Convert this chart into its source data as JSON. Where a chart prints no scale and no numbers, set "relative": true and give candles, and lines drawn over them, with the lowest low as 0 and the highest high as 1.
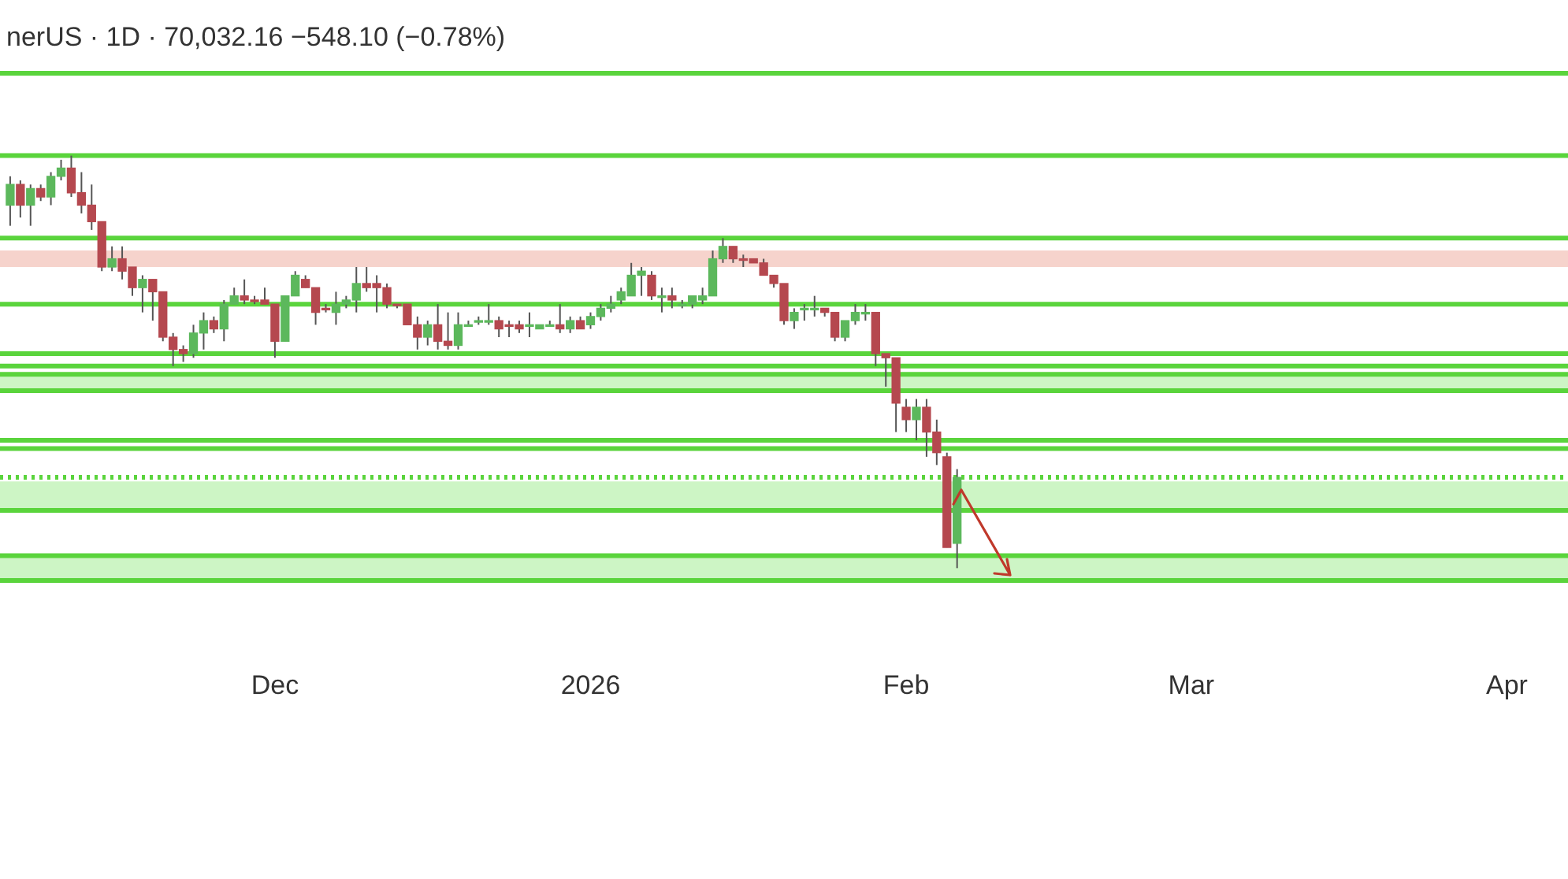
{
  "chart_data": {
    "type": "candlestick",
    "title": "nerUS · 1D · 70,032.16 −548.10 (−0.78%)",
    "relative": true,
    "legend": false,
    "grid": false,
    "tick_labels": "x",
    "xlim": [
      "2025-11-04",
      "2026-04-07"
    ],
    "xticks": [
      {
        "value": "2025-12-01",
        "label": "Dec"
      },
      {
        "value": "2026-01-01",
        "label": "2026"
      },
      {
        "value": "2026-02-01",
        "label": "Feb"
      },
      {
        "value": "2026-03-01",
        "label": "Mar"
      },
      {
        "value": "2026-04-01",
        "label": "Apr"
      }
    ],
    "x": [
      "2025-11-05",
      "2025-11-06",
      "2025-11-07",
      "2025-11-08",
      "2025-11-09",
      "2025-11-10",
      "2025-11-11",
      "2025-11-12",
      "2025-11-13",
      "2025-11-14",
      "2025-11-15",
      "2025-11-16",
      "2025-11-17",
      "2025-11-18",
      "2025-11-19",
      "2025-11-20",
      "2025-11-21",
      "2025-11-22",
      "2025-11-23",
      "2025-11-24",
      "2025-11-25",
      "2025-11-26",
      "2025-11-27",
      "2025-11-28",
      "2025-11-29",
      "2025-11-30",
      "2025-12-01",
      "2025-12-02",
      "2025-12-03",
      "2025-12-04",
      "2025-12-05",
      "2025-12-06",
      "2025-12-07",
      "2025-12-08",
      "2025-12-09",
      "2025-12-10",
      "2025-12-11",
      "2025-12-12",
      "2025-12-13",
      "2025-12-14",
      "2025-12-15",
      "2025-12-16",
      "2025-12-17",
      "2025-12-18",
      "2025-12-19",
      "2025-12-20",
      "2025-12-21",
      "2025-12-22",
      "2025-12-23",
      "2025-12-24",
      "2025-12-25",
      "2025-12-26",
      "2025-12-27",
      "2025-12-28",
      "2025-12-29",
      "2025-12-30",
      "2025-12-31",
      "2026-01-01",
      "2026-01-02",
      "2026-01-03",
      "2026-01-04",
      "2026-01-05",
      "2026-01-06",
      "2026-01-07",
      "2026-01-08",
      "2026-01-09",
      "2026-01-10",
      "2026-01-11",
      "2026-01-12",
      "2026-01-13",
      "2026-01-14",
      "2026-01-15",
      "2026-01-16",
      "2026-01-17",
      "2026-01-18",
      "2026-01-19",
      "2026-01-20",
      "2026-01-21",
      "2026-01-22",
      "2026-01-23",
      "2026-01-24",
      "2026-01-25",
      "2026-01-26",
      "2026-01-27",
      "2026-01-28",
      "2026-01-29",
      "2026-01-30",
      "2026-01-31",
      "2026-02-01",
      "2026-02-02",
      "2026-02-03",
      "2026-02-04",
      "2026-02-05",
      "2026-02-06"
    ],
    "ohlc": [
      [
        0.88,
        0.95,
        0.83,
        0.93
      ],
      [
        0.93,
        0.94,
        0.85,
        0.88
      ],
      [
        0.88,
        0.93,
        0.83,
        0.92
      ],
      [
        0.92,
        0.93,
        0.89,
        0.9
      ],
      [
        0.9,
        0.96,
        0.88,
        0.95
      ],
      [
        0.95,
        0.99,
        0.94,
        0.97
      ],
      [
        0.97,
        1,
        0.9,
        0.91
      ],
      [
        0.91,
        0.96,
        0.86,
        0.88
      ],
      [
        0.88,
        0.93,
        0.82,
        0.84
      ],
      [
        0.84,
        0.84,
        0.72,
        0.73
      ],
      [
        0.73,
        0.78,
        0.72,
        0.75
      ],
      [
        0.75,
        0.78,
        0.7,
        0.72
      ],
      [
        0.73,
        0.73,
        0.66,
        0.68
      ],
      [
        0.68,
        0.71,
        0.62,
        0.7
      ],
      [
        0.7,
        0.7,
        0.6,
        0.67
      ],
      [
        0.67,
        0.67,
        0.55,
        0.56
      ],
      [
        0.56,
        0.57,
        0.49,
        0.53
      ],
      [
        0.53,
        0.54,
        0.5,
        0.52
      ],
      [
        0.52,
        0.59,
        0.51,
        0.57
      ],
      [
        0.57,
        0.62,
        0.53,
        0.6
      ],
      [
        0.6,
        0.61,
        0.57,
        0.58
      ],
      [
        0.58,
        0.65,
        0.55,
        0.64
      ],
      [
        0.64,
        0.68,
        0.64,
        0.66
      ],
      [
        0.66,
        0.7,
        0.64,
        0.65
      ],
      [
        0.65,
        0.66,
        0.64,
        0.65
      ],
      [
        0.65,
        0.68,
        0.64,
        0.64
      ],
      [
        0.64,
        0.64,
        0.51,
        0.55
      ],
      [
        0.55,
        0.66,
        0.55,
        0.66
      ],
      [
        0.66,
        0.72,
        0.66,
        0.71
      ],
      [
        0.7,
        0.71,
        0.68,
        0.68
      ],
      [
        0.68,
        0.68,
        0.59,
        0.62
      ],
      [
        0.63,
        0.64,
        0.62,
        0.63
      ],
      [
        0.62,
        0.67,
        0.59,
        0.64
      ],
      [
        0.64,
        0.66,
        0.63,
        0.65
      ],
      [
        0.65,
        0.73,
        0.62,
        0.69
      ],
      [
        0.69,
        0.73,
        0.67,
        0.68
      ],
      [
        0.69,
        0.71,
        0.62,
        0.68
      ],
      [
        0.68,
        0.69,
        0.63,
        0.64
      ],
      [
        0.64,
        0.64,
        0.63,
        0.64
      ],
      [
        0.64,
        0.64,
        0.59,
        0.59
      ],
      [
        0.59,
        0.61,
        0.53,
        0.56
      ],
      [
        0.56,
        0.6,
        0.54,
        0.59
      ],
      [
        0.59,
        0.64,
        0.53,
        0.55
      ],
      [
        0.55,
        0.62,
        0.53,
        0.54
      ],
      [
        0.54,
        0.62,
        0.53,
        0.59
      ],
      [
        0.59,
        0.6,
        0.59,
        0.59
      ],
      [
        0.6,
        0.61,
        0.59,
        0.6
      ],
      [
        0.6,
        0.64,
        0.59,
        0.6
      ],
      [
        0.6,
        0.61,
        0.56,
        0.58
      ],
      [
        0.59,
        0.6,
        0.56,
        0.59
      ],
      [
        0.59,
        0.6,
        0.57,
        0.58
      ],
      [
        0.59,
        0.62,
        0.56,
        0.59
      ],
      [
        0.58,
        0.59,
        0.58,
        0.59
      ],
      [
        0.59,
        0.6,
        0.59,
        0.59
      ],
      [
        0.59,
        0.64,
        0.57,
        0.58
      ],
      [
        0.58,
        0.61,
        0.57,
        0.6
      ],
      [
        0.6,
        0.61,
        0.58,
        0.58
      ],
      [
        0.59,
        0.62,
        0.58,
        0.61
      ],
      [
        0.61,
        0.64,
        0.6,
        0.63
      ],
      [
        0.63,
        0.66,
        0.62,
        0.64
      ],
      [
        0.65,
        0.68,
        0.64,
        0.67
      ],
      [
        0.66,
        0.74,
        0.66,
        0.71
      ],
      [
        0.71,
        0.73,
        0.66,
        0.72
      ],
      [
        0.71,
        0.72,
        0.65,
        0.66
      ],
      [
        0.66,
        0.68,
        0.62,
        0.66
      ],
      [
        0.66,
        0.68,
        0.63,
        0.65
      ],
      [
        0.64,
        0.65,
        0.63,
        0.64
      ],
      [
        0.64,
        0.66,
        0.63,
        0.66
      ],
      [
        0.65,
        0.68,
        0.64,
        0.66
      ],
      [
        0.66,
        0.77,
        0.66,
        0.75
      ],
      [
        0.75,
        0.8,
        0.74,
        0.78
      ],
      [
        0.78,
        0.78,
        0.74,
        0.75
      ],
      [
        0.75,
        0.76,
        0.73,
        0.75
      ],
      [
        0.75,
        0.75,
        0.74,
        0.74
      ],
      [
        0.74,
        0.75,
        0.71,
        0.71
      ],
      [
        0.71,
        0.71,
        0.68,
        0.69
      ],
      [
        0.69,
        0.69,
        0.59,
        0.6
      ],
      [
        0.6,
        0.63,
        0.58,
        0.62
      ],
      [
        0.63,
        0.64,
        0.6,
        0.63
      ],
      [
        0.63,
        0.66,
        0.61,
        0.63
      ],
      [
        0.63,
        0.63,
        0.61,
        0.62
      ],
      [
        0.62,
        0.62,
        0.55,
        0.56
      ],
      [
        0.56,
        0.6,
        0.55,
        0.6
      ],
      [
        0.6,
        0.64,
        0.59,
        0.62
      ],
      [
        0.62,
        0.64,
        0.6,
        0.62
      ],
      [
        0.62,
        0.62,
        0.49,
        0.52
      ],
      [
        0.52,
        0.52,
        0.44,
        0.51
      ],
      [
        0.51,
        0.51,
        0.33,
        0.4
      ],
      [
        0.39,
        0.41,
        0.33,
        0.36
      ],
      [
        0.36,
        0.41,
        0.31,
        0.39
      ],
      [
        0.39,
        0.41,
        0.27,
        0.33
      ],
      [
        0.33,
        0.36,
        0.25,
        0.28
      ],
      [
        0.27,
        0.28,
        0.05,
        0.05
      ],
      [
        0.06,
        0.24,
        0,
        0.22
      ]
    ],
    "colors": [
      "#5cb85c",
      "#b5484f",
      "#5cb85c",
      "#b5484f",
      "#5cb85c",
      "#5cb85c",
      "#b5484f",
      "#b5484f",
      "#b5484f",
      "#b5484f",
      "#5cb85c",
      "#b5484f",
      "#b5484f",
      "#5cb85c",
      "#b5484f",
      "#b5484f",
      "#b5484f",
      "#b5484f",
      "#5cb85c",
      "#5cb85c",
      "#b5484f",
      "#5cb85c",
      "#5cb85c",
      "#b5484f",
      "#b5484f",
      "#b5484f",
      "#b5484f",
      "#5cb85c",
      "#5cb85c",
      "#b5484f",
      "#b5484f",
      "#b5484f",
      "#5cb85c",
      "#5cb85c",
      "#5cb85c",
      "#b5484f",
      "#b5484f",
      "#b5484f",
      "#b5484f",
      "#b5484f",
      "#b5484f",
      "#5cb85c",
      "#b5484f",
      "#b5484f",
      "#5cb85c",
      "#5cb85c",
      "#5cb85c",
      "#5cb85c",
      "#b5484f",
      "#b5484f",
      "#b5484f",
      "#5cb85c",
      "#5cb85c",
      "#5cb85c",
      "#b5484f",
      "#5cb85c",
      "#b5484f",
      "#5cb85c",
      "#5cb85c",
      "#5cb85c",
      "#5cb85c",
      "#5cb85c",
      "#5cb85c",
      "#b5484f",
      "#5cb85c",
      "#b5484f",
      "#5cb85c",
      "#5cb85c",
      "#5cb85c",
      "#5cb85c",
      "#5cb85c",
      "#b5484f",
      "#b5484f",
      "#b5484f",
      "#b5484f",
      "#b5484f",
      "#b5484f",
      "#5cb85c",
      "#5cb85c",
      "#5cb85c",
      "#b5484f",
      "#b5484f",
      "#5cb85c",
      "#5cb85c",
      "#5cb85c",
      "#b5484f",
      "#b5484f",
      "#b5484f",
      "#b5484f",
      "#5cb85c",
      "#b5484f",
      "#b5484f",
      "#b5484f",
      "#5cb85c"
    ],
    "ref_lines": [
      {
        "axis": "y",
        "value": 1.2,
        "color": "#5ad43c"
      },
      {
        "axis": "y",
        "value": 1.0,
        "color": "#5ad43c"
      },
      {
        "axis": "y",
        "value": 0.8,
        "color": "#5ad43c"
      },
      {
        "axis": "y",
        "value": 0.64,
        "color": "#5ad43c"
      },
      {
        "axis": "y",
        "value": 0.52,
        "color": "#5ad43c"
      },
      {
        "axis": "y",
        "value": 0.49,
        "color": "#5ad43c"
      },
      {
        "axis": "y",
        "value": 0.47,
        "color": "#5ad43c"
      },
      {
        "axis": "y",
        "value": 0.43,
        "color": "#5ad43c"
      },
      {
        "axis": "y",
        "value": 0.31,
        "color": "#5ad43c"
      },
      {
        "axis": "y",
        "value": 0.29,
        "color": "#5ad43c"
      },
      {
        "axis": "y",
        "value": 0.22,
        "color": "#5ad43c",
        "line_style": "dotted"
      },
      {
        "axis": "y",
        "value": 0.14,
        "color": "#5ad43c"
      },
      {
        "axis": "y",
        "value": 0.03,
        "color": "#5ad43c"
      },
      {
        "axis": "y",
        "value": -0.03,
        "color": "#5ad43c"
      }
    ],
    "bands": [
      {
        "axis": "y",
        "from": 0.73,
        "to": 0.77,
        "color": "#f6d3cc"
      },
      {
        "axis": "y",
        "from": 0.43,
        "to": 0.47,
        "color": "#cdf5c5"
      },
      {
        "axis": "y",
        "from": 0.14,
        "to": 0.21,
        "color": "#cdf5c5"
      },
      {
        "axis": "y",
        "from": -0.03,
        "to": 0.03,
        "color": "#cdf5c5"
      }
    ]
  }
}
